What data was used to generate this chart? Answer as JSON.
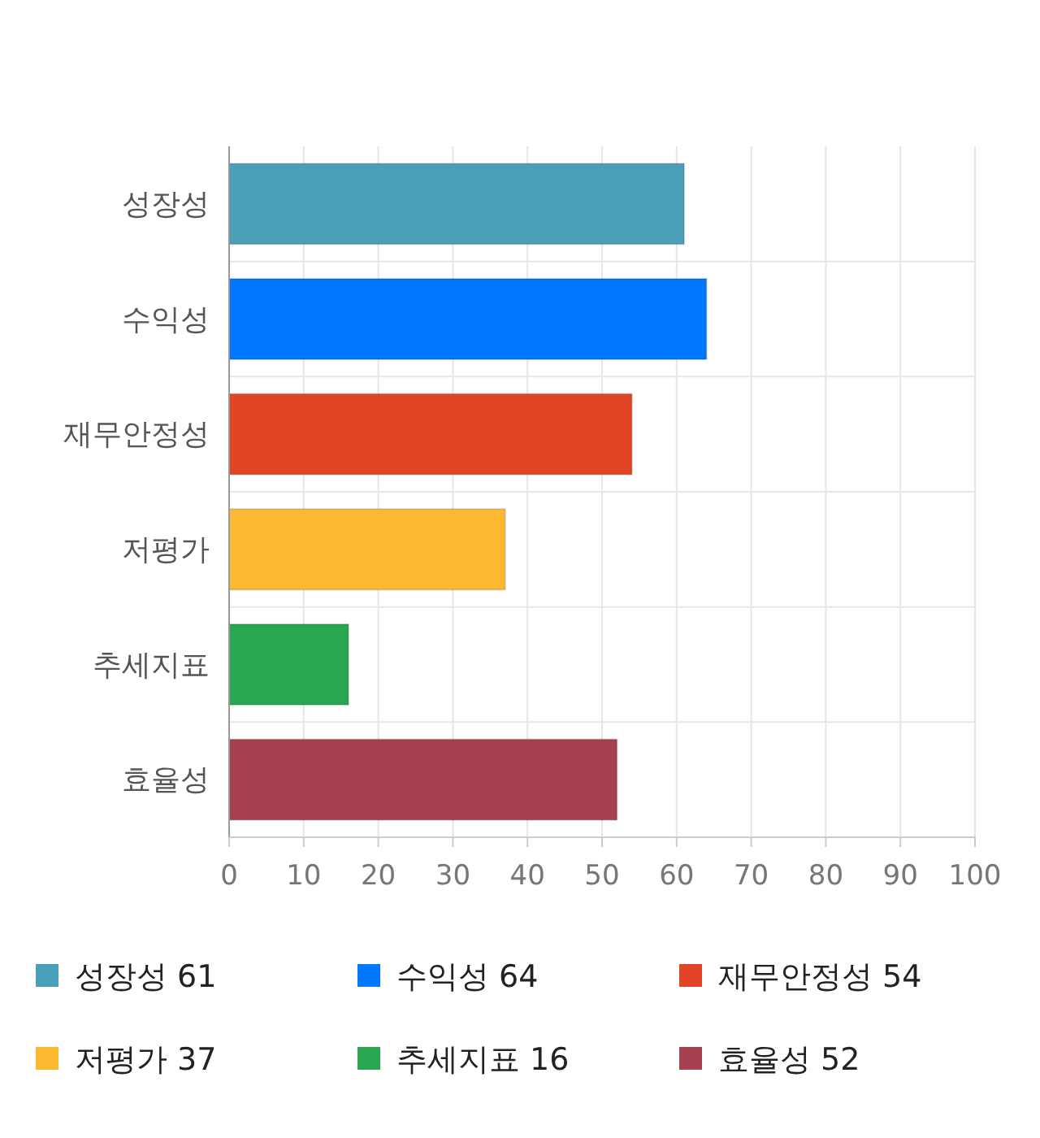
{
  "chart_data": {
    "type": "bar",
    "orientation": "horizontal",
    "categories": [
      "성장성",
      "수익성",
      "재무안정성",
      "저평가",
      "추세지표",
      "효율성"
    ],
    "series": [
      {
        "name": "성장성 61",
        "color": "#4aa0b9",
        "values": [
          61,
          null,
          null,
          null,
          null,
          null
        ]
      },
      {
        "name": "수익성 64",
        "color": "#0077ff",
        "values": [
          null,
          64,
          null,
          null,
          null,
          null
        ]
      },
      {
        "name": "재무안정성 54",
        "color": "#e24525",
        "values": [
          null,
          null,
          54,
          null,
          null,
          null
        ]
      },
      {
        "name": "저평가 37",
        "color": "#feb832",
        "values": [
          null,
          null,
          null,
          37,
          null,
          null
        ]
      },
      {
        "name": "추세지표 16",
        "color": "#28a650",
        "values": [
          null,
          null,
          null,
          null,
          16,
          null
        ]
      },
      {
        "name": "효율성 52",
        "color": "#a6424f",
        "values": [
          null,
          null,
          null,
          null,
          null,
          52
        ]
      }
    ],
    "xlim": [
      0,
      100
    ],
    "xticks": [
      0,
      10,
      20,
      30,
      40,
      50,
      60,
      70,
      80,
      90,
      100
    ],
    "grid": true,
    "legend": "bottom"
  }
}
